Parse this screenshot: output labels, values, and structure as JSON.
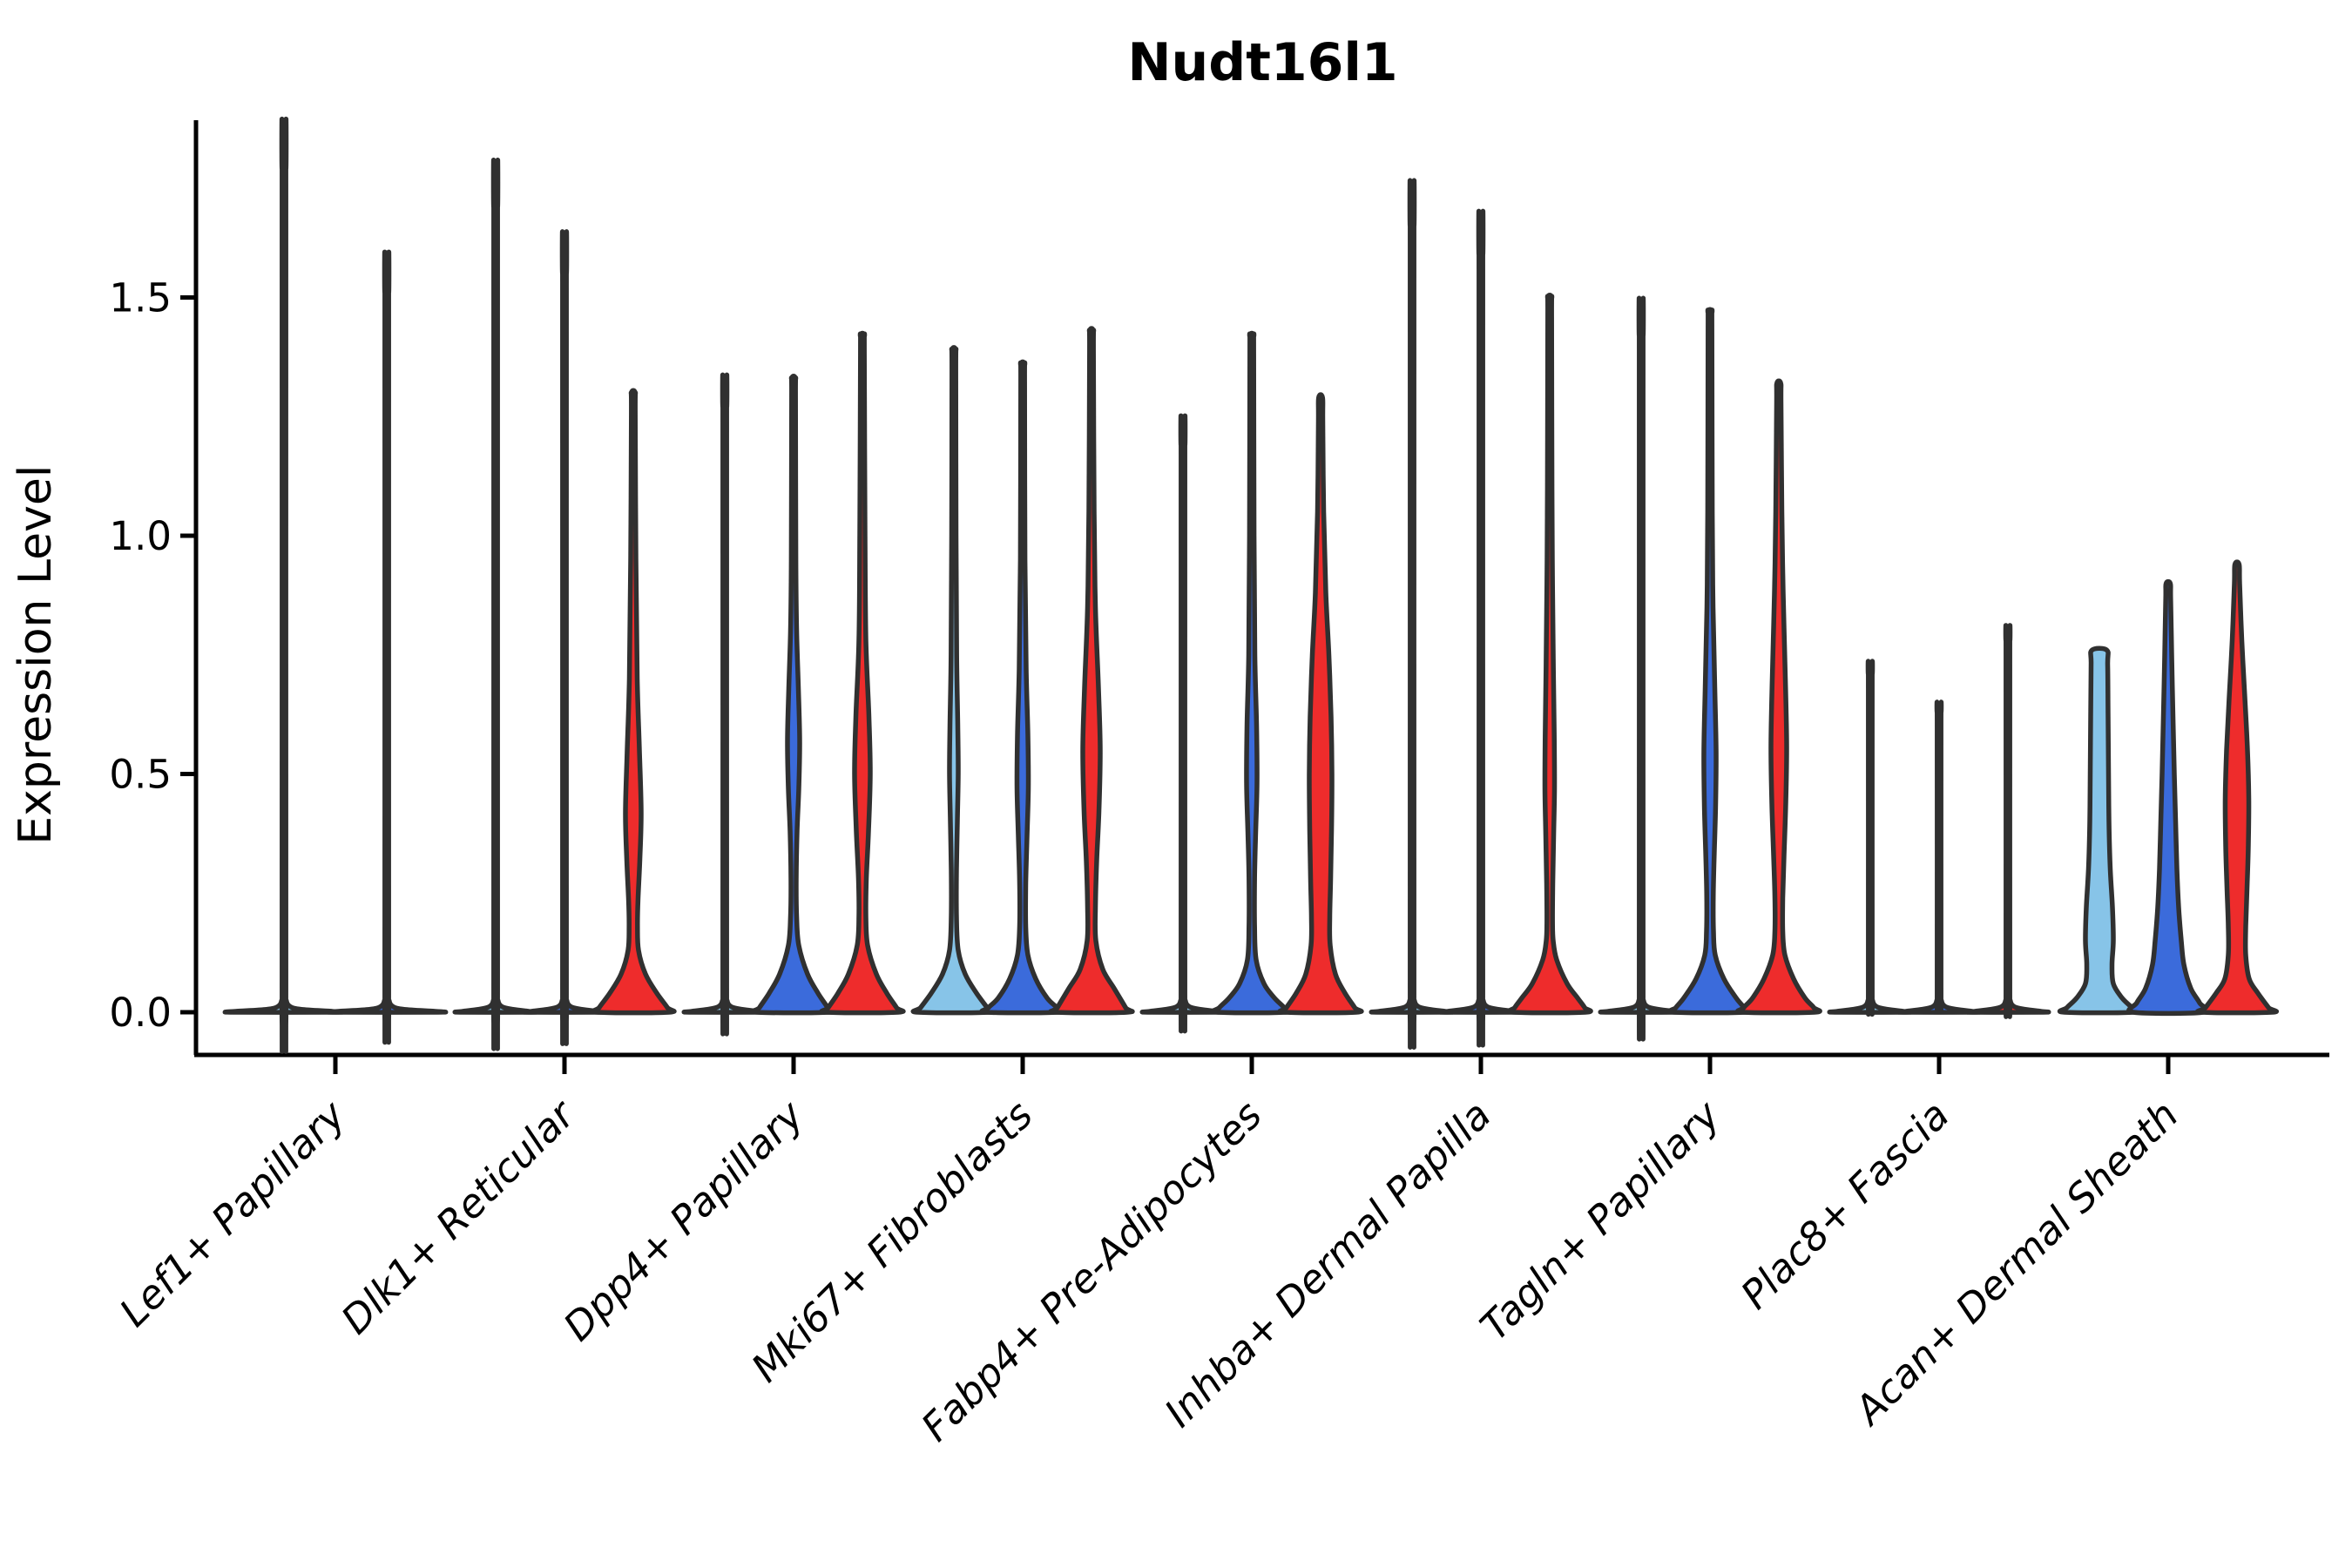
{
  "chart_data": {
    "type": "violin",
    "title": "Nudt16l1",
    "ylabel": "Expression Level",
    "xlabel": "",
    "grid": false,
    "legend": "none",
    "ylim": [
      -0.13,
      1.87
    ],
    "yticks": [
      {
        "label": "0.0",
        "value": 0.0
      },
      {
        "label": "0.5",
        "value": 0.5
      },
      {
        "label": "1.0",
        "value": 1.0
      },
      {
        "label": "1.5",
        "value": 1.5
      }
    ],
    "palette": {
      "lightblue": "#87C4E8",
      "blue": "#3B6BDB",
      "red": "#EE2C2C",
      "edge": "#303030",
      "axis": "#000000"
    },
    "groups": [
      {
        "label": "Lef1+ Papillary",
        "violins": [
          {
            "color": "lightblue",
            "kind": "spike",
            "max": 1.77,
            "base": 59
          },
          {
            "color": "blue",
            "kind": "spike",
            "max": 1.51,
            "base": 59
          }
        ]
      },
      {
        "label": "Dlk1+ Reticular",
        "violins": [
          {
            "color": "lightblue",
            "kind": "spike",
            "max": 1.69,
            "base": 41
          },
          {
            "color": "blue",
            "kind": "spike",
            "max": 1.55,
            "base": 41
          },
          {
            "color": "red",
            "kind": "body",
            "max": 1.3,
            "profile": [
              [
                1.3,
                2.2
              ],
              [
                1.26,
                2.2
              ],
              [
                0.95,
                3
              ],
              [
                0.7,
                4.5
              ],
              [
                0.55,
                7
              ],
              [
                0.42,
                9
              ],
              [
                0.32,
                7.5
              ],
              [
                0.24,
                5.5
              ],
              [
                0.18,
                4.8
              ],
              [
                0.13,
                6
              ],
              [
                0.08,
                14
              ],
              [
                0.04,
                27
              ],
              [
                0.01,
                39
              ],
              [
                0,
                41
              ]
            ]
          }
        ]
      },
      {
        "label": "Dpp4+ Papillary",
        "violins": [
          {
            "color": "lightblue",
            "kind": "spike",
            "max": 1.27,
            "base": 41
          },
          {
            "color": "blue",
            "kind": "body",
            "max": 1.33,
            "profile": [
              [
                1.33,
                2.2
              ],
              [
                1.29,
                2.2
              ],
              [
                0.95,
                2.6
              ],
              [
                0.8,
                3.5
              ],
              [
                0.68,
                5.5
              ],
              [
                0.57,
                7
              ],
              [
                0.47,
                6
              ],
              [
                0.38,
                4
              ],
              [
                0.28,
                3
              ],
              [
                0.2,
                3.5
              ],
              [
                0.14,
                6
              ],
              [
                0.08,
                16
              ],
              [
                0.04,
                28
              ],
              [
                0.01,
                39
              ],
              [
                0,
                41
              ]
            ]
          },
          {
            "color": "red",
            "kind": "body",
            "max": 1.42,
            "profile": [
              [
                1.42,
                2.2
              ],
              [
                1.38,
                2.2
              ],
              [
                1.0,
                3
              ],
              [
                0.78,
                4
              ],
              [
                0.62,
                7.5
              ],
              [
                0.5,
                9
              ],
              [
                0.38,
                7
              ],
              [
                0.28,
                4.5
              ],
              [
                0.2,
                4
              ],
              [
                0.14,
                6
              ],
              [
                0.08,
                16
              ],
              [
                0.04,
                28
              ],
              [
                0.01,
                39
              ],
              [
                0,
                41
              ]
            ]
          }
        ]
      },
      {
        "label": "Mki67+ Fibroblasts",
        "violins": [
          {
            "color": "lightblue",
            "kind": "body",
            "max": 1.39,
            "profile": [
              [
                1.39,
                2.2
              ],
              [
                1.35,
                2.2
              ],
              [
                1.0,
                2.5
              ],
              [
                0.75,
                3.2
              ],
              [
                0.6,
                4.5
              ],
              [
                0.5,
                5
              ],
              [
                0.4,
                4
              ],
              [
                0.3,
                3
              ],
              [
                0.2,
                3
              ],
              [
                0.13,
                5
              ],
              [
                0.08,
                13
              ],
              [
                0.04,
                26
              ],
              [
                0.01,
                38
              ],
              [
                0,
                41
              ]
            ]
          },
          {
            "color": "blue",
            "kind": "body",
            "max": 1.36,
            "profile": [
              [
                1.36,
                2.2
              ],
              [
                1.32,
                2.2
              ],
              [
                0.95,
                2.6
              ],
              [
                0.72,
                4
              ],
              [
                0.58,
                6
              ],
              [
                0.47,
                6.5
              ],
              [
                0.37,
                5
              ],
              [
                0.27,
                3.5
              ],
              [
                0.18,
                3.5
              ],
              [
                0.12,
                6
              ],
              [
                0.07,
                15
              ],
              [
                0.03,
                28
              ],
              [
                0.01,
                39
              ],
              [
                0,
                41
              ]
            ]
          },
          {
            "color": "red",
            "kind": "body",
            "max": 1.43,
            "profile": [
              [
                1.43,
                2.2
              ],
              [
                1.39,
                2.2
              ],
              [
                1.05,
                3
              ],
              [
                0.85,
                4.5
              ],
              [
                0.68,
                8
              ],
              [
                0.55,
                10
              ],
              [
                0.42,
                8.5
              ],
              [
                0.32,
                6
              ],
              [
                0.22,
                4.5
              ],
              [
                0.15,
                5
              ],
              [
                0.09,
                13
              ],
              [
                0.05,
                26
              ],
              [
                0.01,
                39
              ],
              [
                0,
                41
              ]
            ]
          }
        ]
      },
      {
        "label": "Fabp4+ Pre-Adipocytes",
        "violins": [
          {
            "color": "lightblue",
            "kind": "spike",
            "max": 1.19,
            "base": 41
          },
          {
            "color": "blue",
            "kind": "body",
            "max": 1.42,
            "profile": [
              [
                1.42,
                2.2
              ],
              [
                1.38,
                2.2
              ],
              [
                1.0,
                2.6
              ],
              [
                0.75,
                3.5
              ],
              [
                0.6,
                5.5
              ],
              [
                0.48,
                6
              ],
              [
                0.38,
                4.5
              ],
              [
                0.28,
                3.2
              ],
              [
                0.18,
                3.2
              ],
              [
                0.11,
                5
              ],
              [
                0.06,
                14
              ],
              [
                0.03,
                26
              ],
              [
                0.01,
                37
              ],
              [
                0,
                39
              ]
            ]
          },
          {
            "color": "red",
            "kind": "body",
            "max": 1.29,
            "profile": [
              [
                1.29,
                2.2
              ],
              [
                1.24,
                2.5
              ],
              [
                1.05,
                3.5
              ],
              [
                0.88,
                6
              ],
              [
                0.75,
                9.5
              ],
              [
                0.62,
                12
              ],
              [
                0.5,
                13
              ],
              [
                0.38,
                12.5
              ],
              [
                0.28,
                11.5
              ],
              [
                0.2,
                10.5
              ],
              [
                0.14,
                11
              ],
              [
                0.08,
                17
              ],
              [
                0.04,
                28
              ],
              [
                0.01,
                39
              ],
              [
                0,
                41
              ]
            ]
          }
        ]
      },
      {
        "label": "Inhba+ Dermal Papilla",
        "violins": [
          {
            "color": "lightblue",
            "kind": "spike",
            "max": 1.65,
            "base": 41
          },
          {
            "color": "blue",
            "kind": "spike",
            "max": 1.59,
            "base": 41
          },
          {
            "color": "red",
            "kind": "body",
            "max": 1.5,
            "profile": [
              [
                1.5,
                2.2
              ],
              [
                1.46,
                2.2
              ],
              [
                1.1,
                2.6
              ],
              [
                0.9,
                3.2
              ],
              [
                0.72,
                4.2
              ],
              [
                0.58,
                5.2
              ],
              [
                0.47,
                5.5
              ],
              [
                0.37,
                4.5
              ],
              [
                0.27,
                3.5
              ],
              [
                0.19,
                3.2
              ],
              [
                0.15,
                4
              ],
              [
                0.11,
                8
              ],
              [
                0.06,
                20
              ],
              [
                0.03,
                32
              ],
              [
                0.01,
                40
              ],
              [
                0,
                41
              ]
            ]
          }
        ]
      },
      {
        "label": "Tagln+ Papillary",
        "violins": [
          {
            "color": "lightblue",
            "kind": "spike",
            "max": 1.42,
            "base": 41
          },
          {
            "color": "blue",
            "kind": "body",
            "max": 1.47,
            "profile": [
              [
                1.47,
                2.2
              ],
              [
                1.43,
                2.2
              ],
              [
                1.05,
                2.6
              ],
              [
                0.85,
                3.5
              ],
              [
                0.68,
                5.5
              ],
              [
                0.55,
                7
              ],
              [
                0.44,
                6.5
              ],
              [
                0.34,
                5
              ],
              [
                0.25,
                3.8
              ],
              [
                0.17,
                4
              ],
              [
                0.12,
                6
              ],
              [
                0.07,
                16
              ],
              [
                0.03,
                30
              ],
              [
                0.01,
                39
              ],
              [
                0,
                41
              ]
            ]
          },
          {
            "color": "red",
            "kind": "body",
            "max": 1.32,
            "profile": [
              [
                1.32,
                2.2
              ],
              [
                1.28,
                2.5
              ],
              [
                1.05,
                3.5
              ],
              [
                0.88,
                5
              ],
              [
                0.7,
                7.5
              ],
              [
                0.56,
                9
              ],
              [
                0.44,
                8
              ],
              [
                0.33,
                6
              ],
              [
                0.24,
                4.5
              ],
              [
                0.17,
                4.5
              ],
              [
                0.12,
                7
              ],
              [
                0.07,
                17
              ],
              [
                0.03,
                30
              ],
              [
                0.01,
                40
              ],
              [
                0,
                41
              ]
            ]
          }
        ]
      },
      {
        "label": "Plac8+ Fascia",
        "violins": [
          {
            "color": "lightblue",
            "kind": "spike",
            "max": 0.71,
            "base": 41
          },
          {
            "color": "blue",
            "kind": "spike",
            "max": 0.63,
            "base": 41
          },
          {
            "color": "red",
            "kind": "spike",
            "max": 0.78,
            "base": 41
          }
        ]
      },
      {
        "label": "Acan+ Dermal Sheath",
        "violins": [
          {
            "color": "lightblue",
            "kind": "body",
            "max": 0.76,
            "profile": [
              [
                0.76,
                8.5
              ],
              [
                0.73,
                9.5
              ],
              [
                0.62,
                10
              ],
              [
                0.5,
                10.5
              ],
              [
                0.4,
                11
              ],
              [
                0.3,
                12.5
              ],
              [
                0.22,
                15
              ],
              [
                0.15,
                16
              ],
              [
                0.1,
                14.5
              ],
              [
                0.06,
                16
              ],
              [
                0.03,
                26
              ],
              [
                0.01,
                37
              ],
              [
                0,
                40
              ]
            ]
          },
          {
            "color": "blue",
            "kind": "body",
            "max": 0.9,
            "profile": [
              [
                0.9,
                2.4
              ],
              [
                0.87,
                2.8
              ],
              [
                0.75,
                4
              ],
              [
                0.62,
                5.5
              ],
              [
                0.5,
                7
              ],
              [
                0.4,
                8.5
              ],
              [
                0.3,
                10
              ],
              [
                0.22,
                12
              ],
              [
                0.15,
                15
              ],
              [
                0.1,
                18
              ],
              [
                0.05,
                26
              ],
              [
                0.02,
                36
              ],
              [
                0,
                40
              ]
            ]
          },
          {
            "color": "red",
            "kind": "body",
            "max": 0.94,
            "profile": [
              [
                0.94,
                2.4
              ],
              [
                0.9,
                3
              ],
              [
                0.78,
                5.5
              ],
              [
                0.66,
                9
              ],
              [
                0.55,
                12
              ],
              [
                0.45,
                13.5
              ],
              [
                0.35,
                13
              ],
              [
                0.26,
                11.5
              ],
              [
                0.18,
                10
              ],
              [
                0.12,
                10
              ],
              [
                0.07,
                14
              ],
              [
                0.04,
                24
              ],
              [
                0.01,
                36
              ],
              [
                0,
                40
              ]
            ]
          }
        ]
      }
    ]
  }
}
